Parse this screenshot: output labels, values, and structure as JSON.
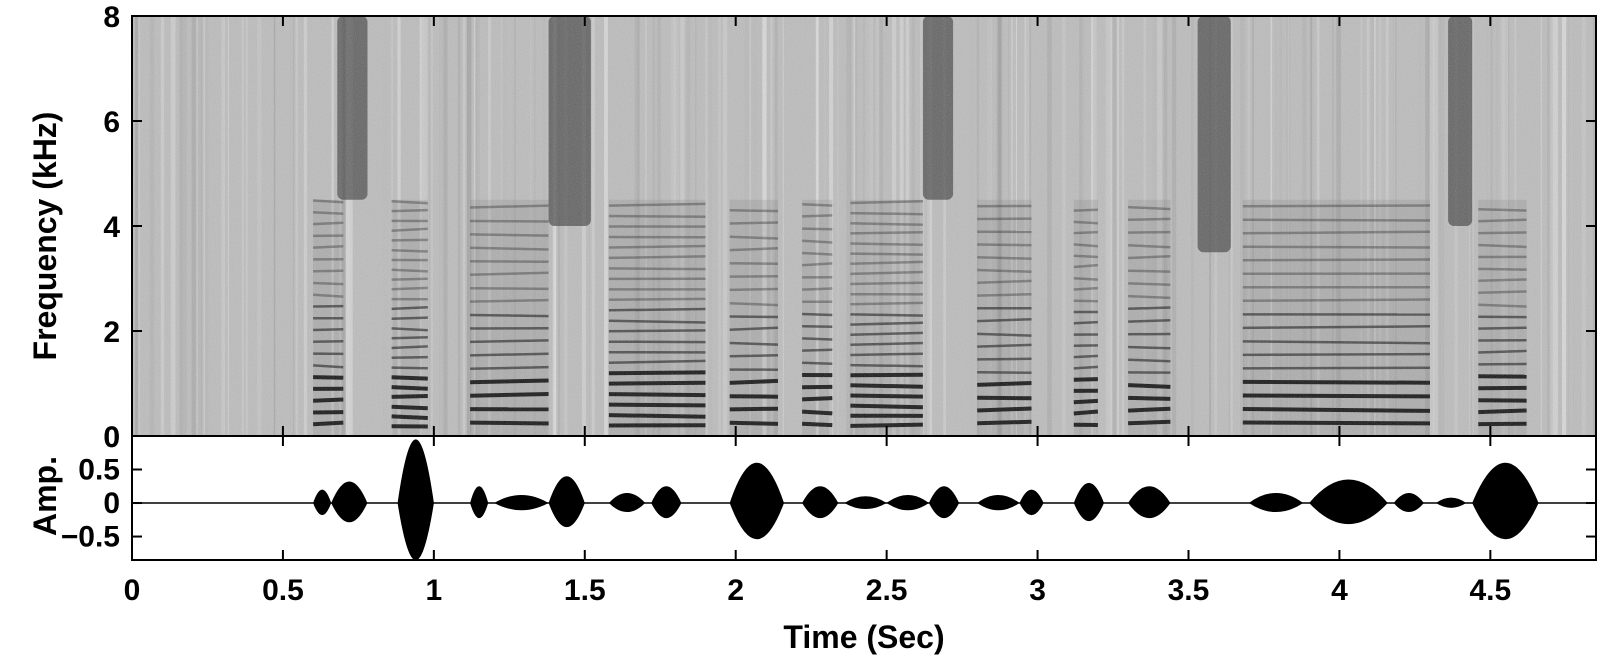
{
  "chart_data": [
    {
      "type": "heatmap",
      "subtype": "spectrogram",
      "colormap": "grayscale (dark = high energy)",
      "ylabel": "Frequency (kHz)",
      "xlim": [
        0,
        4.85
      ],
      "ylim": [
        0,
        8
      ],
      "y_ticks": [
        "0",
        "2",
        "4",
        "6",
        "8"
      ],
      "y_tick_values": [
        0,
        2,
        4,
        6,
        8
      ],
      "dark_bands_high_freq": [
        {
          "t0": 0.68,
          "t1": 0.78,
          "f0": 4.5,
          "f1": 8
        },
        {
          "t0": 1.38,
          "t1": 1.52,
          "f0": 4.0,
          "f1": 8
        },
        {
          "t0": 2.62,
          "t1": 2.72,
          "f0": 4.5,
          "f1": 8
        },
        {
          "t0": 3.53,
          "t1": 3.64,
          "f0": 3.5,
          "f1": 8
        },
        {
          "t0": 4.36,
          "t1": 4.44,
          "f0": 4.0,
          "f1": 8
        }
      ],
      "voiced_segments": [
        {
          "t0": 0.6,
          "t1": 0.7
        },
        {
          "t0": 0.86,
          "t1": 0.98
        },
        {
          "t0": 1.12,
          "t1": 1.38
        },
        {
          "t0": 1.58,
          "t1": 1.9
        },
        {
          "t0": 1.98,
          "t1": 2.14
        },
        {
          "t0": 2.22,
          "t1": 2.32
        },
        {
          "t0": 2.38,
          "t1": 2.62
        },
        {
          "t0": 2.8,
          "t1": 2.98
        },
        {
          "t0": 3.12,
          "t1": 3.2
        },
        {
          "t0": 3.3,
          "t1": 3.44
        },
        {
          "t0": 3.68,
          "t1": 4.3
        },
        {
          "t0": 4.46,
          "t1": 4.62
        }
      ]
    },
    {
      "type": "area",
      "subtype": "waveform",
      "ylabel": "Amp.",
      "xlabel": "Time (Sec)",
      "xlim": [
        0,
        4.85
      ],
      "ylim": [
        -0.85,
        1.0
      ],
      "y_ticks": [
        "0.5",
        "0",
        "−0.5"
      ],
      "y_tick_values": [
        0.5,
        0,
        -0.5
      ],
      "x_ticks": [
        "0",
        "0.5",
        "1",
        "1.5",
        "2",
        "2.5",
        "3",
        "3.5",
        "4",
        "4.5"
      ],
      "x_tick_values": [
        0,
        0.5,
        1,
        1.5,
        2,
        2.5,
        3,
        3.5,
        4,
        4.5
      ],
      "envelope_segments": [
        {
          "t0": 0.6,
          "t1": 0.66,
          "amp": 0.2
        },
        {
          "t0": 0.66,
          "t1": 0.78,
          "amp": 0.32
        },
        {
          "t0": 0.88,
          "t1": 1.0,
          "amp": 0.95
        },
        {
          "t0": 1.12,
          "t1": 1.18,
          "amp": 0.25
        },
        {
          "t0": 1.2,
          "t1": 1.38,
          "amp": 0.12
        },
        {
          "t0": 1.38,
          "t1": 1.5,
          "amp": 0.4
        },
        {
          "t0": 1.58,
          "t1": 1.7,
          "amp": 0.15
        },
        {
          "t0": 1.72,
          "t1": 1.82,
          "amp": 0.25
        },
        {
          "t0": 1.98,
          "t1": 2.16,
          "amp": 0.6
        },
        {
          "t0": 2.22,
          "t1": 2.34,
          "amp": 0.25
        },
        {
          "t0": 2.36,
          "t1": 2.5,
          "amp": 0.1
        },
        {
          "t0": 2.5,
          "t1": 2.64,
          "amp": 0.12
        },
        {
          "t0": 2.64,
          "t1": 2.74,
          "amp": 0.25
        },
        {
          "t0": 2.8,
          "t1": 2.94,
          "amp": 0.12
        },
        {
          "t0": 2.94,
          "t1": 3.02,
          "amp": 0.2
        },
        {
          "t0": 3.12,
          "t1": 3.22,
          "amp": 0.3
        },
        {
          "t0": 3.3,
          "t1": 3.44,
          "amp": 0.25
        },
        {
          "t0": 3.7,
          "t1": 3.88,
          "amp": 0.15
        },
        {
          "t0": 3.9,
          "t1": 4.16,
          "amp": 0.35
        },
        {
          "t0": 4.18,
          "t1": 4.28,
          "amp": 0.15
        },
        {
          "t0": 4.32,
          "t1": 4.42,
          "amp": 0.08
        },
        {
          "t0": 4.44,
          "t1": 4.66,
          "amp": 0.6
        }
      ]
    }
  ]
}
